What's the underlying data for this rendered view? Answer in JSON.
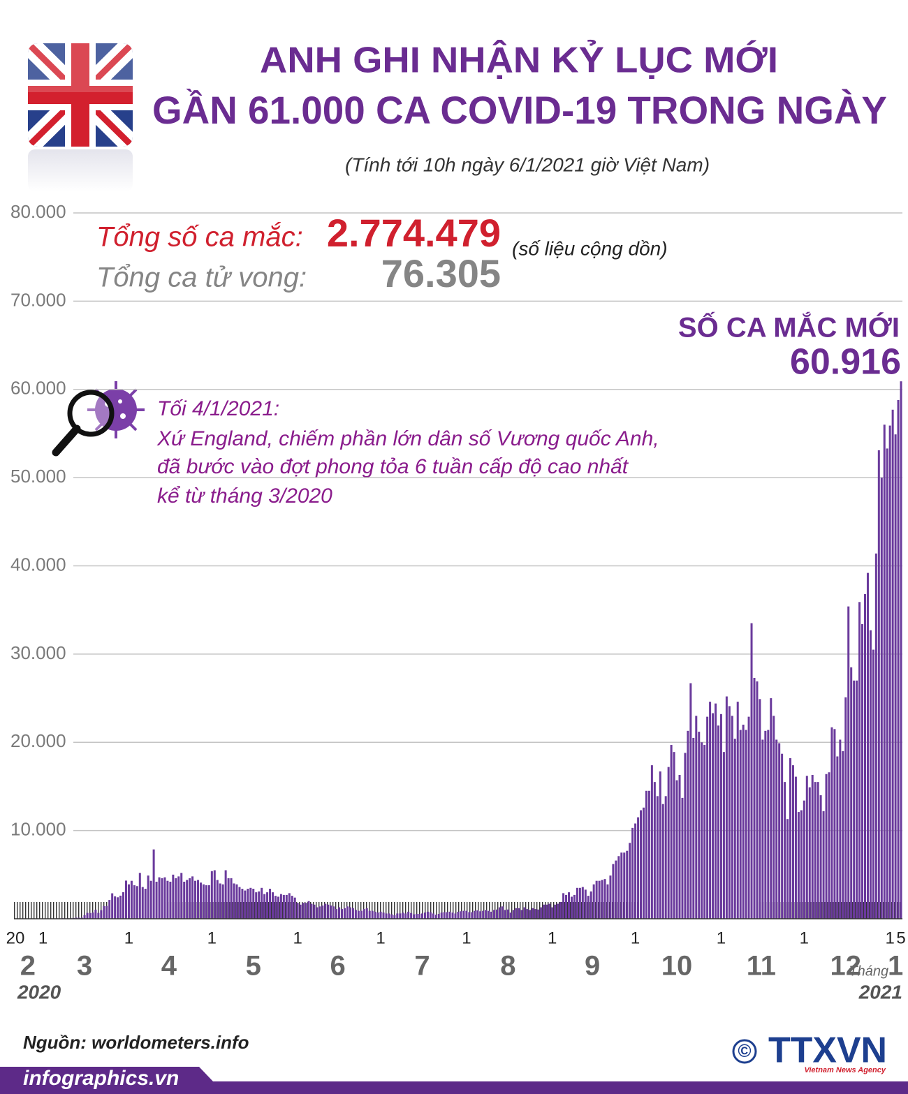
{
  "header": {
    "title_lines": [
      "ANH GHI NHẬN KỶ LỤC MỚI",
      "GẦN 61.000 CA COVID-19 TRONG NGÀY"
    ],
    "subtitle": "(Tính tới 10h ngày 6/1/2021 giờ Việt Nam)"
  },
  "summary": {
    "cases_label": "Tổng số ca mắc:",
    "cases": "2.774.479",
    "cases_note": "(số liệu cộng dồn)",
    "deaths_label": "Tổng ca tử vong:",
    "deaths": "76.305"
  },
  "chart_data": {
    "type": "bar",
    "color": "#6a3a9c",
    "grid": true,
    "ylim": [
      0,
      80000
    ],
    "yticks": [
      {
        "value": 10000,
        "label": "10.000"
      },
      {
        "value": 20000,
        "label": "20.000"
      },
      {
        "value": 30000,
        "label": "30.000"
      },
      {
        "value": 40000,
        "label": "40.000"
      },
      {
        "value": 50000,
        "label": "50.000"
      },
      {
        "value": 60000,
        "label": "60.000"
      },
      {
        "value": 70000,
        "label": "70.000"
      },
      {
        "value": 80000,
        "label": "80.000"
      }
    ],
    "x": [
      "2020-02-20",
      "2020-02-21",
      "2020-02-22",
      "2020-02-23",
      "2020-02-24",
      "2020-02-25",
      "2020-02-26",
      "2020-02-27",
      "2020-02-28",
      "2020-02-29",
      "2020-03-01",
      "2020-03-02",
      "2020-03-03",
      "2020-03-04",
      "2020-03-05",
      "2020-03-06",
      "2020-03-07",
      "2020-03-08",
      "2020-03-09",
      "2020-03-10",
      "2020-03-11",
      "2020-03-12",
      "2020-03-13",
      "2020-03-14",
      "2020-03-15",
      "2020-03-16",
      "2020-03-17",
      "2020-03-18",
      "2020-03-19",
      "2020-03-20",
      "2020-03-21",
      "2020-03-22",
      "2020-03-23",
      "2020-03-24",
      "2020-03-25",
      "2020-03-26",
      "2020-03-27",
      "2020-03-28",
      "2020-03-29",
      "2020-03-30",
      "2020-03-31",
      "2020-04-01",
      "2020-04-02",
      "2020-04-03",
      "2020-04-04",
      "2020-04-05",
      "2020-04-06",
      "2020-04-07",
      "2020-04-08",
      "2020-04-09",
      "2020-04-10",
      "2020-04-11",
      "2020-04-12",
      "2020-04-13",
      "2020-04-14",
      "2020-04-15",
      "2020-04-16",
      "2020-04-17",
      "2020-04-18",
      "2020-04-19",
      "2020-04-20",
      "2020-04-21",
      "2020-04-22",
      "2020-04-23",
      "2020-04-24",
      "2020-04-25",
      "2020-04-26",
      "2020-04-27",
      "2020-04-28",
      "2020-04-29",
      "2020-04-30",
      "2020-05-01",
      "2020-05-02",
      "2020-05-03",
      "2020-05-04",
      "2020-05-05",
      "2020-05-06",
      "2020-05-07",
      "2020-05-08",
      "2020-05-09",
      "2020-05-10",
      "2020-05-11",
      "2020-05-12",
      "2020-05-13",
      "2020-05-14",
      "2020-05-15",
      "2020-05-16",
      "2020-05-17",
      "2020-05-18",
      "2020-05-19",
      "2020-05-20",
      "2020-05-21",
      "2020-05-22",
      "2020-05-23",
      "2020-05-24",
      "2020-05-25",
      "2020-05-26",
      "2020-05-27",
      "2020-05-28",
      "2020-05-29",
      "2020-05-30",
      "2020-05-31",
      "2020-06-01",
      "2020-06-02",
      "2020-06-03",
      "2020-06-04",
      "2020-06-05",
      "2020-06-06",
      "2020-06-07",
      "2020-06-08",
      "2020-06-09",
      "2020-06-10",
      "2020-06-11",
      "2020-06-12",
      "2020-06-13",
      "2020-06-14",
      "2020-06-15",
      "2020-06-16",
      "2020-06-17",
      "2020-06-18",
      "2020-06-19",
      "2020-06-20",
      "2020-06-21",
      "2020-06-22",
      "2020-06-23",
      "2020-06-24",
      "2020-06-25",
      "2020-06-26",
      "2020-06-27",
      "2020-06-28",
      "2020-06-29",
      "2020-06-30",
      "2020-07-01",
      "2020-07-02",
      "2020-07-03",
      "2020-07-04",
      "2020-07-05",
      "2020-07-06",
      "2020-07-07",
      "2020-07-08",
      "2020-07-09",
      "2020-07-10",
      "2020-07-11",
      "2020-07-12",
      "2020-07-13",
      "2020-07-14",
      "2020-07-15",
      "2020-07-16",
      "2020-07-17",
      "2020-07-18",
      "2020-07-19",
      "2020-07-20",
      "2020-07-21",
      "2020-07-22",
      "2020-07-23",
      "2020-07-24",
      "2020-07-25",
      "2020-07-26",
      "2020-07-27",
      "2020-07-28",
      "2020-07-29",
      "2020-07-30",
      "2020-07-31",
      "2020-08-01",
      "2020-08-02",
      "2020-08-03",
      "2020-08-04",
      "2020-08-05",
      "2020-08-06",
      "2020-08-07",
      "2020-08-08",
      "2020-08-09",
      "2020-08-10",
      "2020-08-11",
      "2020-08-12",
      "2020-08-13",
      "2020-08-14",
      "2020-08-15",
      "2020-08-16",
      "2020-08-17",
      "2020-08-18",
      "2020-08-19",
      "2020-08-20",
      "2020-08-21",
      "2020-08-22",
      "2020-08-23",
      "2020-08-24",
      "2020-08-25",
      "2020-08-26",
      "2020-08-27",
      "2020-08-28",
      "2020-08-29",
      "2020-08-30",
      "2020-08-31",
      "2020-09-01",
      "2020-09-02",
      "2020-09-03",
      "2020-09-04",
      "2020-09-05",
      "2020-09-06",
      "2020-09-07",
      "2020-09-08",
      "2020-09-09",
      "2020-09-10",
      "2020-09-11",
      "2020-09-12",
      "2020-09-13",
      "2020-09-14",
      "2020-09-15",
      "2020-09-16",
      "2020-09-17",
      "2020-09-18",
      "2020-09-19",
      "2020-09-20",
      "2020-09-21",
      "2020-09-22",
      "2020-09-23",
      "2020-09-24",
      "2020-09-25",
      "2020-09-26",
      "2020-09-27",
      "2020-09-28",
      "2020-09-29",
      "2020-09-30",
      "2020-10-01",
      "2020-10-02",
      "2020-10-03",
      "2020-10-04",
      "2020-10-05",
      "2020-10-06",
      "2020-10-07",
      "2020-10-08",
      "2020-10-09",
      "2020-10-10",
      "2020-10-11",
      "2020-10-12",
      "2020-10-13",
      "2020-10-14",
      "2020-10-15",
      "2020-10-16",
      "2020-10-17",
      "2020-10-18",
      "2020-10-19",
      "2020-10-20",
      "2020-10-21",
      "2020-10-22",
      "2020-10-23",
      "2020-10-24",
      "2020-10-25",
      "2020-10-26",
      "2020-10-27",
      "2020-10-28",
      "2020-10-29",
      "2020-10-30",
      "2020-10-31",
      "2020-11-01",
      "2020-11-02",
      "2020-11-03",
      "2020-11-04",
      "2020-11-05",
      "2020-11-06",
      "2020-11-07",
      "2020-11-08",
      "2020-11-09",
      "2020-11-10",
      "2020-11-11",
      "2020-11-12",
      "2020-11-13",
      "2020-11-14",
      "2020-11-15",
      "2020-11-16",
      "2020-11-17",
      "2020-11-18",
      "2020-11-19",
      "2020-11-20",
      "2020-11-21",
      "2020-11-22",
      "2020-11-23",
      "2020-11-24",
      "2020-11-25",
      "2020-11-26",
      "2020-11-27",
      "2020-11-28",
      "2020-11-29",
      "2020-11-30",
      "2020-12-01",
      "2020-12-02",
      "2020-12-03",
      "2020-12-04",
      "2020-12-05",
      "2020-12-06",
      "2020-12-07",
      "2020-12-08",
      "2020-12-09",
      "2020-12-10",
      "2020-12-11",
      "2020-12-12",
      "2020-12-13",
      "2020-12-14",
      "2020-12-15",
      "2020-12-16",
      "2020-12-17",
      "2020-12-18",
      "2020-12-19",
      "2020-12-20",
      "2020-12-21",
      "2020-12-22",
      "2020-12-23",
      "2020-12-24",
      "2020-12-25",
      "2020-12-26",
      "2020-12-27",
      "2020-12-28",
      "2020-12-29",
      "2020-12-30",
      "2020-12-31",
      "2021-01-01",
      "2021-01-02",
      "2021-01-03",
      "2021-01-04",
      "2021-01-05"
    ],
    "values": [
      0,
      0,
      0,
      0,
      4,
      0,
      0,
      2,
      2,
      5,
      12,
      4,
      11,
      34,
      30,
      48,
      43,
      67,
      46,
      50,
      52,
      83,
      134,
      117,
      133,
      407,
      676,
      643,
      714,
      1035,
      665,
      967,
      1427,
      1452,
      2129,
      2885,
      2546,
      2433,
      2619,
      3009,
      4324,
      3900,
      4300,
      3800,
      3700,
      5200,
      3600,
      3400,
      4900,
      4300,
      7860,
      4200,
      4700,
      4600,
      4700,
      4300,
      4200,
      5000,
      4600,
      4800,
      5200,
      4200,
      4400,
      4600,
      4800,
      4300,
      4400,
      4100,
      3900,
      3800,
      3800,
      5400,
      5500,
      4400,
      4000,
      3900,
      5500,
      4600,
      4600,
      4000,
      3900,
      3600,
      3400,
      3200,
      3400,
      3500,
      3400,
      3000,
      3100,
      3500,
      2800,
      3000,
      3400,
      3000,
      2600,
      2500,
      2800,
      2700,
      2700,
      2900,
      2600,
      2400,
      1800,
      1600,
      1800,
      1800,
      2000,
      1700,
      1600,
      1300,
      1400,
      1500,
      1700,
      1600,
      1500,
      1400,
      1100,
      1300,
      1100,
      1200,
      1400,
      1300,
      1200,
      1000,
      900,
      900,
      1100,
      1200,
      900,
      900,
      800,
      700,
      800,
      700,
      600,
      600,
      500,
      400,
      600,
      600,
      700,
      600,
      800,
      650,
      500,
      550,
      550,
      600,
      700,
      800,
      750,
      600,
      450,
      550,
      700,
      750,
      750,
      800,
      700,
      600,
      800,
      850,
      900,
      900,
      750,
      750,
      900,
      950,
      850,
      900,
      1000,
      900,
      800,
      1000,
      1050,
      1300,
      1400,
      1000,
      1050,
      700,
      1000,
      1200,
      1200,
      1000,
      1300,
      1100,
      1000,
      1200,
      1100,
      1050,
      1300,
      1600,
      1600,
      1700,
      1300,
      1600,
      1700,
      1900,
      2900,
      2700,
      3000,
      2500,
      2700,
      3500,
      3500,
      3600,
      3300,
      2600,
      3100,
      3900,
      4300,
      4300,
      4400,
      4500,
      3900,
      4900,
      6200,
      6600,
      7100,
      7500,
      7500,
      7700,
      8600,
      10300,
      10800,
      11500,
      12300,
      12600,
      14500,
      14500,
      17400,
      15500,
      13900,
      16700,
      13000,
      13900,
      17200,
      19700,
      18900,
      15700,
      16300,
      13700,
      18800,
      21300,
      26700,
      20500,
      23000,
      21200,
      20000,
      19700,
      22900,
      24600,
      23300,
      24400,
      21900,
      23200,
      18900,
      25200,
      24100,
      23000,
      20400,
      24600,
      21400,
      22000,
      21400,
      22900,
      33500,
      27300,
      26900,
      24900,
      20300,
      21300,
      21400,
      25000,
      23000,
      20300,
      19900,
      18700,
      15500,
      11300,
      18200,
      17400,
      16100,
      12100,
      12300,
      13400,
      16200,
      14900,
      16300,
      15500,
      15500,
      14000,
      12200,
      16400,
      16600,
      21700,
      21500,
      18400,
      20300,
      19000,
      25100,
      35400,
      28500,
      27000,
      27000,
      35900,
      33400,
      36800,
      39200,
      32700,
      30500,
      41400,
      53100,
      50000,
      56000,
      53300,
      55900,
      57700,
      54900,
      58800,
      60916
    ],
    "day_ticks": [
      {
        "value": "2020-02-20",
        "label": "20"
      },
      {
        "value": "2020-03-01",
        "label": "1"
      },
      {
        "value": "2020-04-01",
        "label": "1"
      },
      {
        "value": "2020-05-01",
        "label": "1"
      },
      {
        "value": "2020-06-01",
        "label": "1"
      },
      {
        "value": "2020-07-01",
        "label": "1"
      },
      {
        "value": "2020-08-01",
        "label": "1"
      },
      {
        "value": "2020-09-01",
        "label": "1"
      },
      {
        "value": "2020-10-01",
        "label": "1"
      },
      {
        "value": "2020-11-01",
        "label": "1"
      },
      {
        "value": "2020-12-01",
        "label": "1"
      },
      {
        "value": "2021-01-01",
        "label": "1"
      },
      {
        "value": "2021-01-05",
        "label": "5"
      }
    ],
    "month_labels": [
      {
        "value": "2020-02",
        "label": "2"
      },
      {
        "value": "2020-03",
        "label": "3"
      },
      {
        "value": "2020-04",
        "label": "4"
      },
      {
        "value": "2020-05",
        "label": "5"
      },
      {
        "value": "2020-06",
        "label": "6"
      },
      {
        "value": "2020-07",
        "label": "7"
      },
      {
        "value": "2020-08",
        "label": "8"
      },
      {
        "value": "2020-09",
        "label": "9"
      },
      {
        "value": "2020-10",
        "label": "10"
      },
      {
        "value": "2020-11",
        "label": "11"
      },
      {
        "value": "2020-12",
        "label": "12"
      },
      {
        "value": "2021-01",
        "label": "1"
      }
    ],
    "month_prefix": "Tháng",
    "year_labels": [
      {
        "value": "2020-02",
        "label": "2020"
      },
      {
        "value": "2021-01",
        "label": "2021"
      }
    ],
    "latest": {
      "label": "SỐ CA MẮC MỚI",
      "value_label": "60.916"
    },
    "annotation": {
      "date": "Tối 4/1/2021:",
      "lines": [
        "Xứ England, chiếm phần lớn dân số Vương quốc Anh,",
        "đã bước vào đợt phong tỏa 6 tuần cấp độ cao nhất",
        "kể từ tháng 3/2020"
      ]
    }
  },
  "footer": {
    "source": "Nguồn: worldometers.info",
    "website": "infographics.vn",
    "copyright": "©",
    "agency": "TTXVN",
    "agency_en": "Vietnam News Agency"
  }
}
